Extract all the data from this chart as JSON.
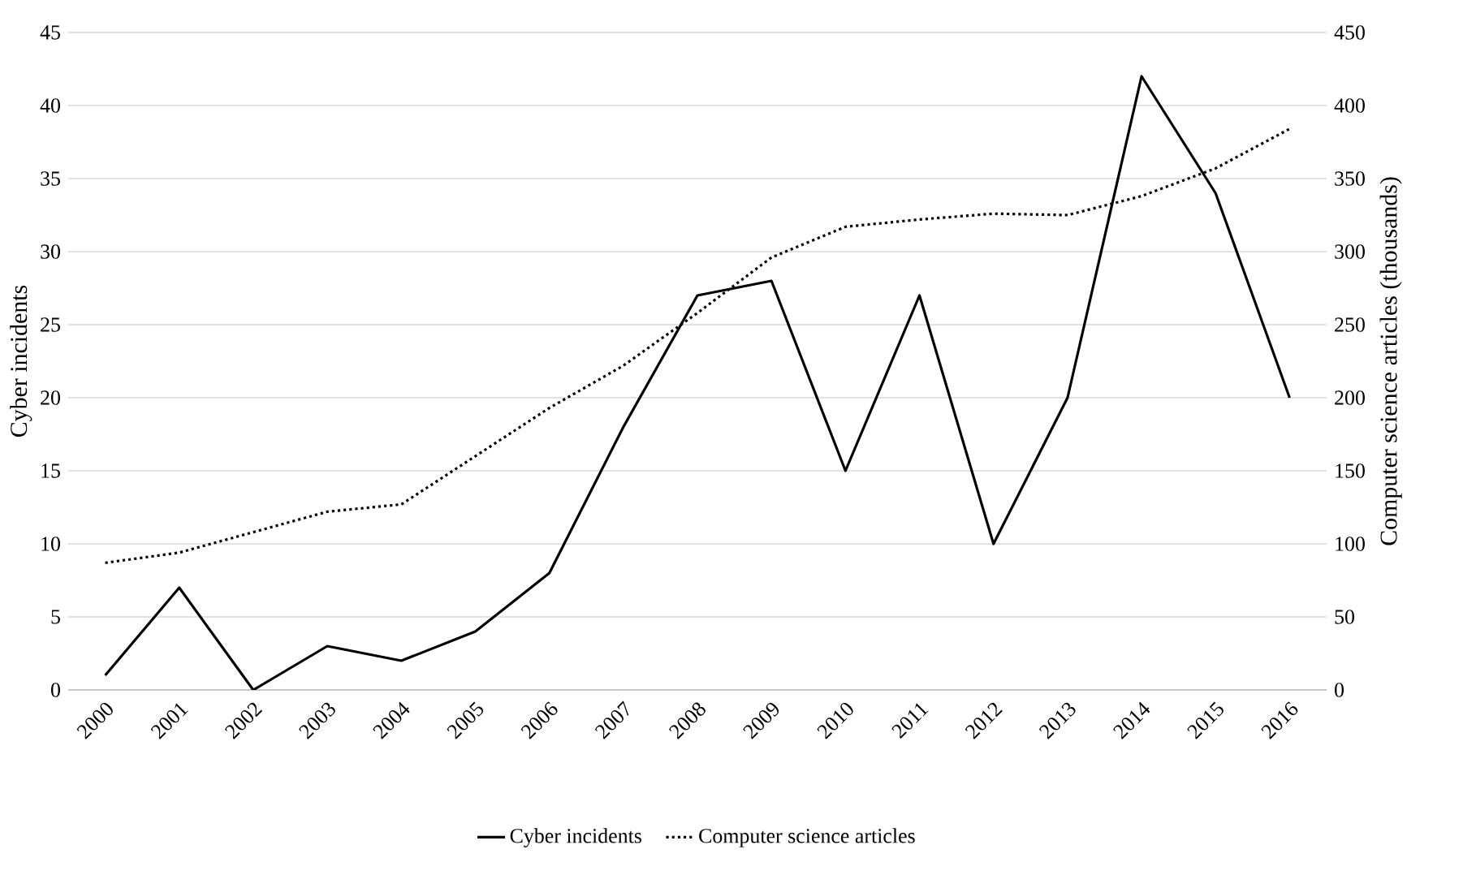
{
  "chart_data": {
    "type": "line",
    "ylabel": "Cyber incidents",
    "y2label": "Computer science articles (thousands)",
    "categories": [
      "2000",
      "2001",
      "2002",
      "2003",
      "2004",
      "2005",
      "2006",
      "2007",
      "2008",
      "2009",
      "2010",
      "2011",
      "2012",
      "2013",
      "2014",
      "2015",
      "2016"
    ],
    "ylim": [
      0,
      45
    ],
    "yticks": [
      0,
      5,
      10,
      15,
      20,
      25,
      30,
      35,
      40,
      45
    ],
    "y2lim": [
      0,
      450
    ],
    "y2ticks": [
      0,
      50,
      100,
      150,
      200,
      250,
      300,
      350,
      400,
      450
    ],
    "grid": "y",
    "legend": "bottom",
    "series": [
      {
        "name": "Cyber incidents",
        "color": "#000000",
        "line_style": "solid",
        "values": [
          1,
          7,
          0,
          3,
          2,
          4,
          8,
          18,
          27,
          28,
          15,
          27,
          10,
          20,
          42,
          34,
          20
        ]
      },
      {
        "name": "Computer science articles",
        "color": "#000000",
        "line_style": "dotted",
        "axis": "y2",
        "values": [
          87,
          94,
          108,
          122,
          127,
          160,
          193,
          222,
          258,
          296,
          317,
          322,
          326,
          325,
          338,
          357,
          384
        ]
      }
    ]
  }
}
